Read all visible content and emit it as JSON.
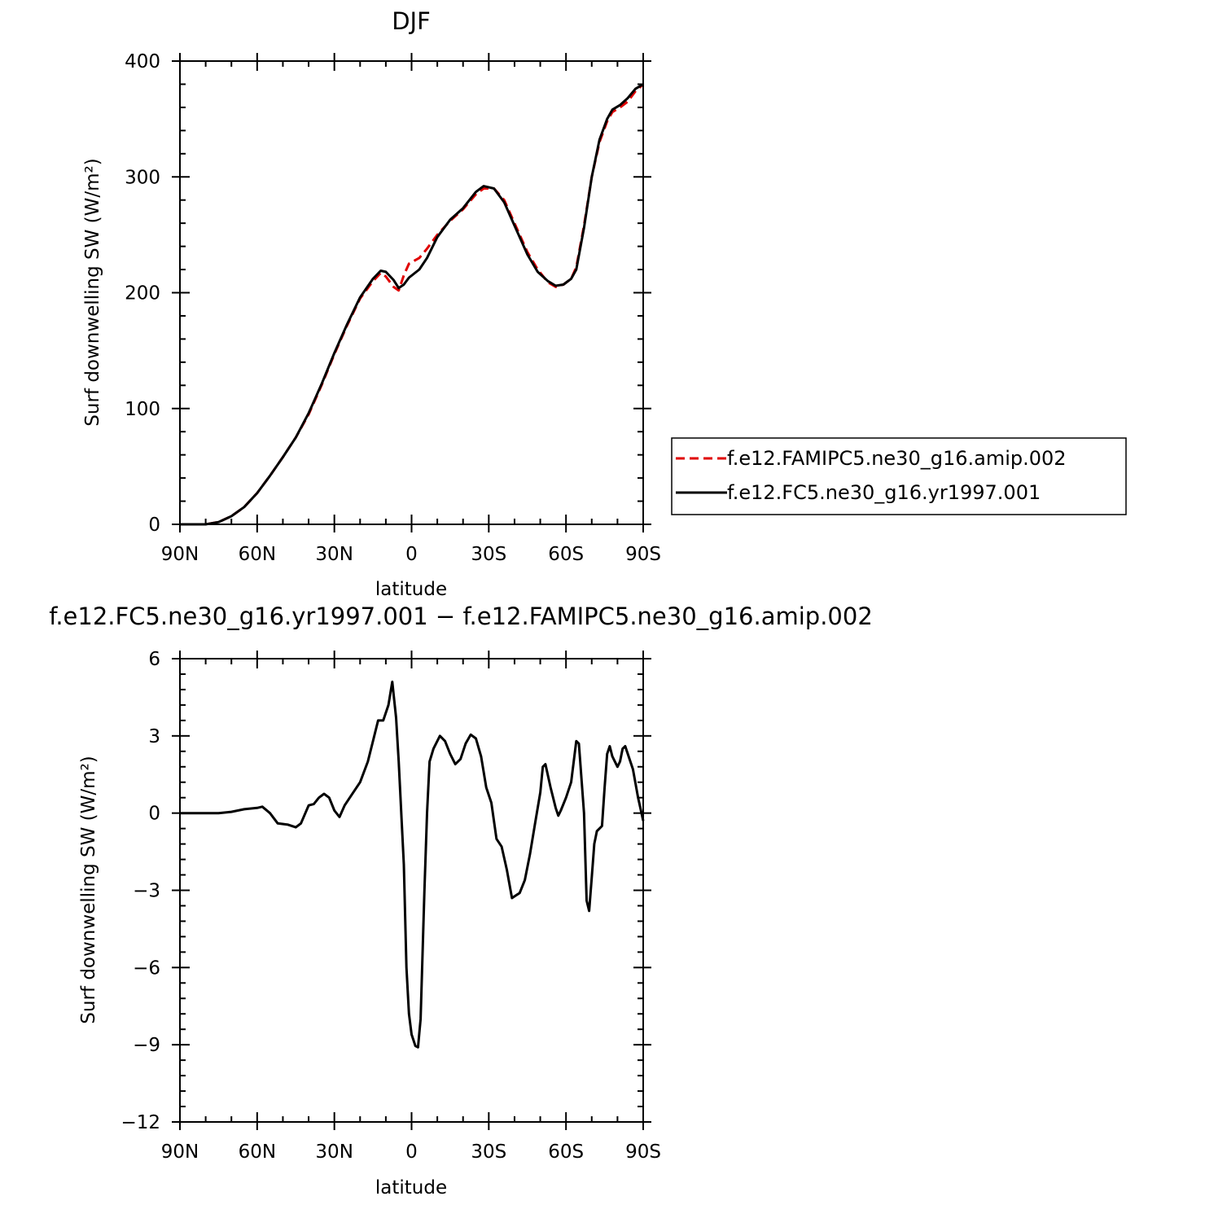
{
  "chart_data": [
    {
      "type": "line",
      "title": "DJF",
      "xlabel": "latitude",
      "ylabel": "Surf downwelling SW (W/m²)",
      "xlim": [
        90,
        -90
      ],
      "ylim": [
        0,
        400
      ],
      "x_tick_labels": [
        "90N",
        "60N",
        "30N",
        "0",
        "30S",
        "60S",
        "90S"
      ],
      "y_tick_labels": [
        "0",
        "100",
        "200",
        "300",
        "400"
      ],
      "legend": {
        "placement": "right",
        "entries": [
          {
            "label": "f.e12.FAMIPC5.ne30_g16.amip.002",
            "color": "#e00000",
            "dash": "dashed"
          },
          {
            "label": "f.e12.FC5.ne30_g16.yr1997.001",
            "color": "#000000",
            "dash": "solid"
          }
        ]
      },
      "series": [
        {
          "name": "f.e12.FAMIPC5.ne30_g16.amip.002",
          "color": "#e00000",
          "dash": "dashed",
          "points": [
            [
              90,
              0
            ],
            [
              80,
              0
            ],
            [
              75,
              2
            ],
            [
              70,
              7
            ],
            [
              65,
              15
            ],
            [
              60,
              27
            ],
            [
              55,
              42
            ],
            [
              50,
              58
            ],
            [
              45,
              75
            ],
            [
              40,
              95
            ],
            [
              35,
              120
            ],
            [
              30,
              147
            ],
            [
              25,
              172
            ],
            [
              20,
              195
            ],
            [
              15,
              210
            ],
            [
              12,
              217
            ],
            [
              10,
              214
            ],
            [
              7,
              205
            ],
            [
              5,
              202
            ],
            [
              3,
              215
            ],
            [
              1,
              225
            ],
            [
              -3,
              230
            ],
            [
              -6,
              238
            ],
            [
              -10,
              250
            ],
            [
              -15,
              262
            ],
            [
              -20,
              272
            ],
            [
              -25,
              285
            ],
            [
              -28,
              290
            ],
            [
              -32,
              290
            ],
            [
              -36,
              280
            ],
            [
              -40,
              260
            ],
            [
              -45,
              235
            ],
            [
              -49,
              220
            ],
            [
              -53,
              209
            ],
            [
              -56,
              205
            ],
            [
              -59,
              207
            ],
            [
              -62,
              212
            ],
            [
              -64,
              222
            ],
            [
              -67,
              258
            ],
            [
              -70,
              300
            ],
            [
              -73,
              330
            ],
            [
              -76,
              348
            ],
            [
              -78,
              356
            ],
            [
              -81,
              360
            ],
            [
              -84,
              365
            ],
            [
              -87,
              374
            ],
            [
              -90,
              380
            ]
          ]
        },
        {
          "name": "f.e12.FC5.ne30_g16.yr1997.001",
          "color": "#000000",
          "dash": "solid",
          "points": [
            [
              90,
              0
            ],
            [
              80,
              0
            ],
            [
              75,
              2
            ],
            [
              70,
              7
            ],
            [
              65,
              15
            ],
            [
              60,
              27
            ],
            [
              55,
              42
            ],
            [
              50,
              58
            ],
            [
              45,
              75
            ],
            [
              40,
              96
            ],
            [
              35,
              121
            ],
            [
              30,
              148
            ],
            [
              25,
              173
            ],
            [
              20,
              196
            ],
            [
              15,
              212
            ],
            [
              12,
              219
            ],
            [
              10,
              218
            ],
            [
              7,
              211
            ],
            [
              5,
              204
            ],
            [
              3,
              207
            ],
            [
              1,
              213
            ],
            [
              -3,
              220
            ],
            [
              -6,
              230
            ],
            [
              -10,
              248
            ],
            [
              -15,
              263
            ],
            [
              -20,
              273
            ],
            [
              -25,
              287
            ],
            [
              -28,
              292
            ],
            [
              -32,
              290
            ],
            [
              -36,
              278
            ],
            [
              -40,
              258
            ],
            [
              -45,
              233
            ],
            [
              -49,
              218
            ],
            [
              -53,
              210
            ],
            [
              -56,
              206
            ],
            [
              -59,
              207
            ],
            [
              -62,
              212
            ],
            [
              -64,
              220
            ],
            [
              -67,
              256
            ],
            [
              -70,
              300
            ],
            [
              -73,
              332
            ],
            [
              -76,
              350
            ],
            [
              -78,
              358
            ],
            [
              -81,
              362
            ],
            [
              -84,
              368
            ],
            [
              -87,
              376
            ],
            [
              -90,
              380
            ]
          ]
        }
      ]
    },
    {
      "type": "line",
      "title": "f.e12.FC5.ne30_g16.yr1997.001 − f.e12.FAMIPC5.ne30_g16.amip.002",
      "xlabel": "latitude",
      "ylabel": "Surf downwelling SW (W/m²)",
      "xlim": [
        90,
        -90
      ],
      "ylim": [
        -12,
        6
      ],
      "x_tick_labels": [
        "90N",
        "60N",
        "30N",
        "0",
        "30S",
        "60S",
        "90S"
      ],
      "y_tick_labels": [
        "−12",
        "−9",
        "−6",
        "−3",
        "0",
        "3",
        "6"
      ],
      "series": [
        {
          "color": "#000000",
          "dash": "solid",
          "points": [
            [
              90,
              0
            ],
            [
              75,
              0
            ],
            [
              70,
              0.05
            ],
            [
              65,
              0.15
            ],
            [
              60,
              0.2
            ],
            [
              58,
              0.25
            ],
            [
              55,
              0
            ],
            [
              52,
              -0.4
            ],
            [
              48,
              -0.45
            ],
            [
              45,
              -0.55
            ],
            [
              43,
              -0.4
            ],
            [
              40,
              0.3
            ],
            [
              38,
              0.35
            ],
            [
              36,
              0.6
            ],
            [
              34,
              0.75
            ],
            [
              32,
              0.6
            ],
            [
              30,
              0.1
            ],
            [
              28,
              -0.15
            ],
            [
              26,
              0.3
            ],
            [
              24,
              0.6
            ],
            [
              20,
              1.2
            ],
            [
              17,
              2
            ],
            [
              15,
              2.8
            ],
            [
              13,
              3.6
            ],
            [
              11,
              3.6
            ],
            [
              9,
              4.2
            ],
            [
              7.5,
              5.1
            ],
            [
              6,
              3.7
            ],
            [
              5,
              2
            ],
            [
              3,
              -2
            ],
            [
              2,
              -6
            ],
            [
              1,
              -7.8
            ],
            [
              0,
              -8.6
            ],
            [
              -1.5,
              -9.05
            ],
            [
              -2.5,
              -9.1
            ],
            [
              -3.5,
              -8
            ],
            [
              -5,
              -3
            ],
            [
              -6,
              0
            ],
            [
              -7,
              2
            ],
            [
              -8.5,
              2.5
            ],
            [
              -11,
              3
            ],
            [
              -13,
              2.8
            ],
            [
              -15,
              2.3
            ],
            [
              -17,
              1.9
            ],
            [
              -19,
              2.1
            ],
            [
              -21,
              2.7
            ],
            [
              -23,
              3.05
            ],
            [
              -25,
              2.9
            ],
            [
              -27,
              2.2
            ],
            [
              -29,
              1
            ],
            [
              -31,
              0.4
            ],
            [
              -33,
              -1
            ],
            [
              -35,
              -1.3
            ],
            [
              -37,
              -2.2
            ],
            [
              -39,
              -3.3
            ],
            [
              -42,
              -3.1
            ],
            [
              -44,
              -2.6
            ],
            [
              -46,
              -1.6
            ],
            [
              -48,
              -0.4
            ],
            [
              -50,
              0.8
            ],
            [
              -51,
              1.8
            ],
            [
              -52,
              1.9
            ],
            [
              -54,
              1
            ],
            [
              -56,
              0.2
            ],
            [
              -57,
              -0.1
            ],
            [
              -58,
              0.1
            ],
            [
              -60,
              0.6
            ],
            [
              -62,
              1.2
            ],
            [
              -64,
              2.8
            ],
            [
              -65,
              2.7
            ],
            [
              -67,
              0
            ],
            [
              -68,
              -3.4
            ],
            [
              -69,
              -3.8
            ],
            [
              -70,
              -2.5
            ],
            [
              -71,
              -1.2
            ],
            [
              -72,
              -0.7
            ],
            [
              -74,
              -0.5
            ],
            [
              -75,
              1
            ],
            [
              -76,
              2.3
            ],
            [
              -77,
              2.6
            ],
            [
              -78,
              2.2
            ],
            [
              -80,
              1.8
            ],
            [
              -81,
              2
            ],
            [
              -82,
              2.5
            ],
            [
              -83,
              2.6
            ],
            [
              -86,
              1.7
            ],
            [
              -88,
              0.6
            ],
            [
              -90,
              -0.3
            ]
          ]
        }
      ]
    }
  ]
}
